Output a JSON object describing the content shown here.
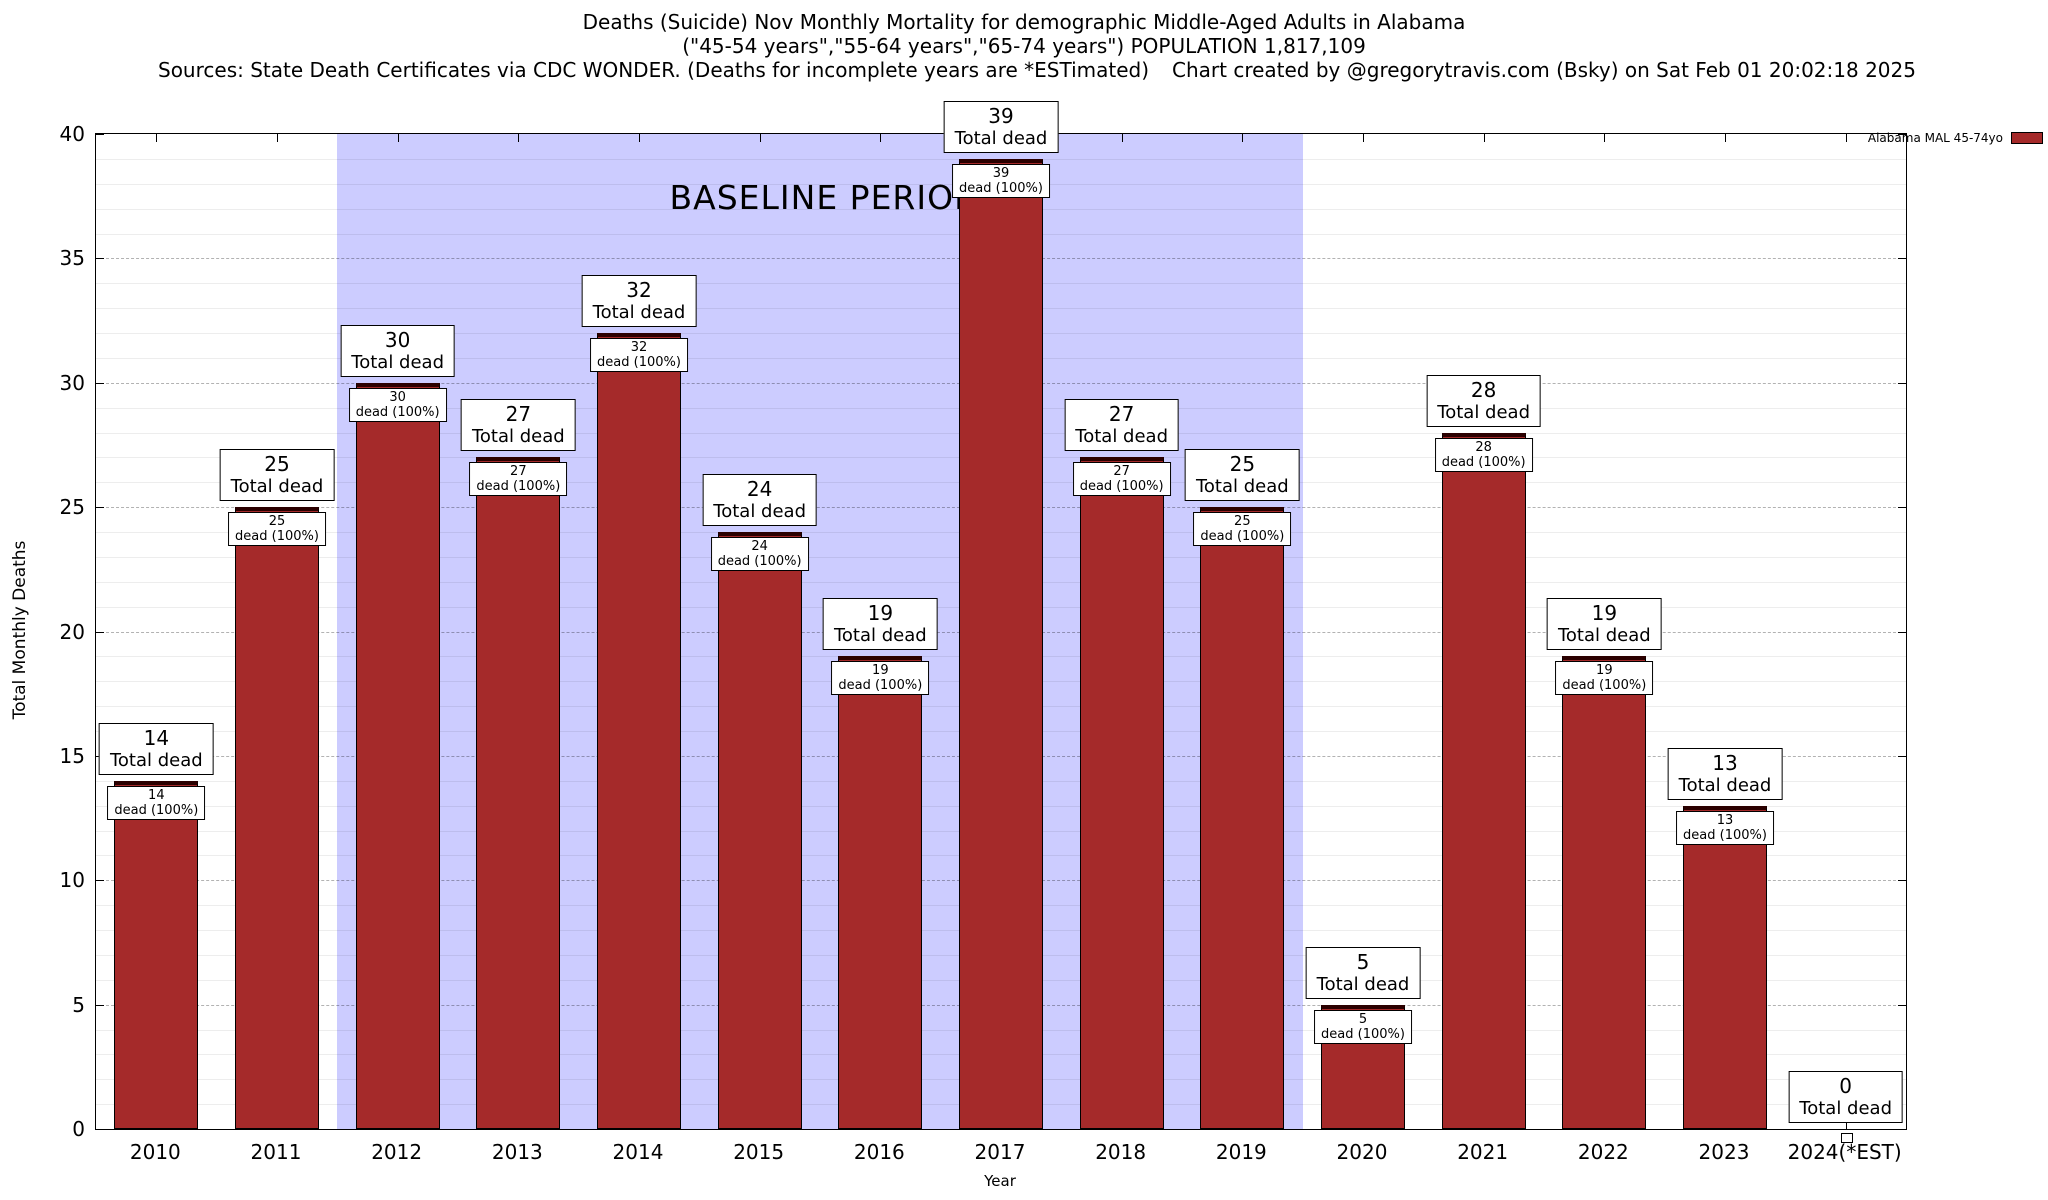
{
  "chart_data": {
    "type": "bar",
    "title": "Deaths (Suicide) Nov Monthly Mortality for demographic Middle-Aged Adults in Alabama",
    "subtitle": "(\"45-54 years\",\"55-64 years\",\"65-74 years\") POPULATION 1,817,109",
    "source_note": "Sources: State Death Certificates via CDC WONDER. (Deaths for incomplete years are *ESTimated)",
    "credit_note": "Chart created by @gregorytravis.com (Bsky) on Sat Feb 01 20:02:18 2025",
    "categories": [
      "2010",
      "2011",
      "2012",
      "2013",
      "2014",
      "2015",
      "2016",
      "2017",
      "2018",
      "2019",
      "2020",
      "2021",
      "2022",
      "2023",
      "2024(*EST)"
    ],
    "values": [
      14,
      25,
      30,
      27,
      32,
      24,
      19,
      39,
      27,
      25,
      5,
      28,
      19,
      13,
      0
    ],
    "bar_top_label": "Total dead",
    "bar_inner_label": "dead (100%)",
    "ylabel": "Total Monthly Deaths",
    "xlabel": "Year",
    "ylim": [
      0,
      40
    ],
    "ytick_step": 5,
    "ygrid_minor_step": 1,
    "bar_color": "#A52A2A",
    "baseline_region": {
      "label": "BASELINE PERIOD",
      "start_category": "2012",
      "end_category": "2019",
      "start_index": 2,
      "end_index": 9,
      "color": "#CCCCFF"
    },
    "legend": {
      "position": "top-right",
      "entries": [
        {
          "label": "Alabama MAL 45-74yo",
          "color": "#A52A2A"
        }
      ]
    },
    "grid": true
  }
}
